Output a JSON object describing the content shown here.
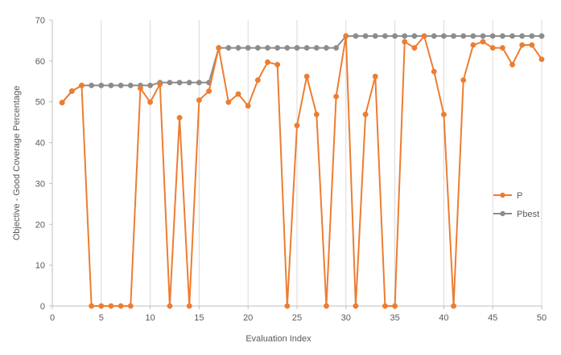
{
  "chart_data": {
    "type": "line",
    "title": "",
    "xlabel": "Evaluation Index",
    "ylabel": "Objective - Good Coverage Percentage",
    "xlim": [
      0,
      50
    ],
    "ylim": [
      0,
      70
    ],
    "x_ticks": [
      0,
      5,
      10,
      15,
      20,
      25,
      30,
      35,
      40,
      45,
      50
    ],
    "y_ticks": [
      0,
      10,
      20,
      30,
      40,
      50,
      60,
      70
    ],
    "grid": "vertical",
    "legend_position": "right",
    "x": [
      1,
      2,
      3,
      4,
      5,
      6,
      7,
      8,
      9,
      10,
      11,
      12,
      13,
      14,
      15,
      16,
      17,
      18,
      19,
      20,
      21,
      22,
      23,
      24,
      25,
      26,
      27,
      28,
      29,
      30,
      31,
      32,
      33,
      34,
      35,
      36,
      37,
      38,
      39,
      40,
      41,
      42,
      43,
      44,
      45,
      46,
      47,
      48,
      49,
      50
    ],
    "series": [
      {
        "name": "P",
        "color": "#ED7D31",
        "values": [
          49.8,
          52.6,
          54,
          0,
          0,
          0,
          0,
          0,
          53.3,
          49.9,
          54.3,
          0,
          46.1,
          0,
          50.4,
          52.6,
          63.2,
          49.9,
          51.9,
          49,
          55.3,
          59.7,
          59.1,
          0,
          44.2,
          56.2,
          46.9,
          0,
          51.3,
          66.1,
          0,
          46.9,
          56.2,
          0,
          0,
          64.7,
          63.2,
          66.1,
          57.4,
          46.9,
          0,
          55.3,
          63.9,
          64.7,
          63.2,
          63.2,
          59.1,
          63.9,
          63.9,
          60.4
        ]
      },
      {
        "name": "Pbest",
        "color": "#8C8C8C",
        "values": [
          49.8,
          52.6,
          54,
          54,
          54,
          54,
          54,
          54,
          54,
          54,
          54.7,
          54.7,
          54.7,
          54.7,
          54.7,
          54.7,
          63.2,
          63.2,
          63.2,
          63.2,
          63.2,
          63.2,
          63.2,
          63.2,
          63.2,
          63.2,
          63.2,
          63.2,
          63.2,
          66.1,
          66.1,
          66.1,
          66.1,
          66.1,
          66.1,
          66.1,
          66.1,
          66.1,
          66.1,
          66.1,
          66.1,
          66.1,
          66.1,
          66.1,
          66.1,
          66.1,
          66.1,
          66.1,
          66.1,
          66.1
        ]
      }
    ]
  }
}
